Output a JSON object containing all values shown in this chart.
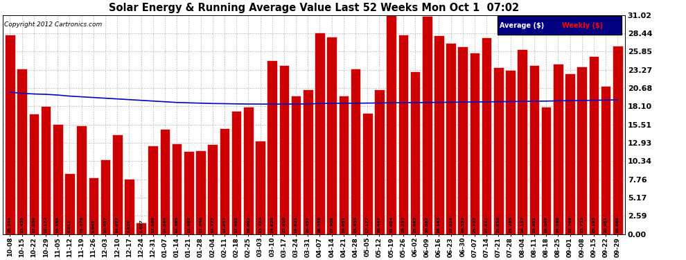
{
  "title": "Solar Energy & Running Average Value Last 52 Weeks Mon Oct 1  07:02",
  "copyright": "Copyright 2012 Cartronics.com",
  "bar_color": "#cc0000",
  "line_color": "#0000cc",
  "ylim": [
    0,
    31.02
  ],
  "yticks": [
    0.0,
    2.59,
    5.17,
    7.76,
    10.34,
    12.93,
    15.51,
    18.1,
    20.68,
    23.27,
    25.85,
    28.44,
    31.02
  ],
  "categories": [
    "10-08",
    "10-15",
    "10-22",
    "10-29",
    "11-05",
    "11-12",
    "11-19",
    "11-26",
    "12-03",
    "12-10",
    "12-17",
    "12-24",
    "12-31",
    "01-07",
    "01-14",
    "01-21",
    "01-28",
    "02-04",
    "02-11",
    "02-18",
    "02-25",
    "03-03",
    "03-10",
    "03-17",
    "03-24",
    "03-31",
    "04-07",
    "04-14",
    "04-21",
    "04-28",
    "05-05",
    "05-12",
    "05-19",
    "05-26",
    "06-02",
    "06-09",
    "06-16",
    "06-23",
    "06-30",
    "07-07",
    "07-14",
    "07-21",
    "07-28",
    "08-04",
    "08-11",
    "08-18",
    "08-25",
    "09-01",
    "09-08",
    "09-15",
    "09-22",
    "09-29"
  ],
  "bar_values": [
    28.244,
    23.435,
    17.03,
    18.172,
    15.555,
    8.611,
    15.378,
    8.043,
    10.557,
    14.077,
    7.826,
    1.687,
    12.56,
    14.864,
    12.885,
    11.802,
    11.84,
    12.777,
    14.957,
    17.402,
    18.002,
    13.223,
    24.62,
    23.91,
    19.621,
    20.457,
    28.556,
    27.906,
    19.651,
    23.435,
    17.177,
    20.447,
    31.024,
    28.257,
    23.062,
    30.882,
    28.143,
    27.018,
    26.552,
    25.722,
    27.817,
    23.618,
    23.285,
    26.157,
    23.951,
    18.049,
    24.098,
    22.768,
    23.733,
    25.193,
    20.981,
    26.666
  ],
  "avg_values": [
    20.1,
    19.95,
    19.85,
    19.8,
    19.7,
    19.55,
    19.45,
    19.35,
    19.25,
    19.15,
    19.05,
    18.95,
    18.85,
    18.75,
    18.65,
    18.6,
    18.55,
    18.5,
    18.48,
    18.45,
    18.43,
    18.42,
    18.42,
    18.42,
    18.43,
    18.44,
    18.5,
    18.52,
    18.54,
    18.55,
    18.56,
    18.58,
    18.6,
    18.62,
    18.63,
    18.64,
    18.66,
    18.68,
    18.7,
    18.72,
    18.74,
    18.76,
    18.78,
    18.8,
    18.82,
    18.84,
    18.88,
    18.9,
    18.93,
    18.96,
    18.99,
    19.02
  ]
}
